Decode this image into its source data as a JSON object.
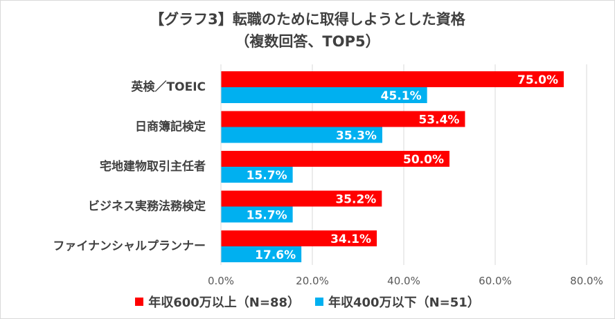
{
  "chart_data": {
    "type": "bar",
    "orientation": "horizontal",
    "title": "【グラフ3】転職のために取得しようとした資格",
    "subtitle": "（複数回答、TOP5）",
    "categories": [
      "英検／TOEIC",
      "日商簿記検定",
      "宅地建物取引主任者",
      "ビジネス実務法務検定",
      "ファイナンシャルプランナー"
    ],
    "series": [
      {
        "name": "年収600万以上（N=88）",
        "color": "#ff0000",
        "values": [
          75.0,
          53.4,
          50.0,
          35.2,
          34.1
        ],
        "labels": [
          "75.0%",
          "53.4%",
          "50.0%",
          "35.2%",
          "34.1%"
        ]
      },
      {
        "name": "年収400万以下（N=51）",
        "color": "#00b0f0",
        "values": [
          45.1,
          35.3,
          15.7,
          15.7,
          17.6
        ],
        "labels": [
          "45.1%",
          "35.3%",
          "15.7%",
          "15.7%",
          "17.6%"
        ]
      }
    ],
    "xlim": [
      0,
      80
    ],
    "xticks": [
      0,
      20,
      40,
      60,
      80
    ],
    "xtick_labels": [
      "0.0%",
      "20.0%",
      "40.0%",
      "60.0%",
      "80.0%"
    ],
    "grid": true,
    "legend_position": "bottom"
  }
}
